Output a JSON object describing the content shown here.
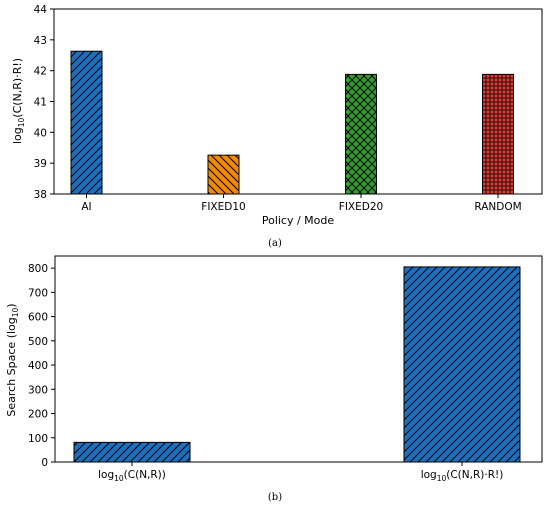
{
  "chart_data": [
    {
      "type": "bar",
      "panel_label": "(a)",
      "categories": [
        "AI",
        "FIXED10",
        "FIXED20",
        "RANDOM"
      ],
      "values": [
        42.63,
        39.26,
        41.88,
        41.88
      ],
      "bar_colors": [
        "#1f6fbf",
        "#f28a00",
        "#2e9e2e",
        "#d93a32"
      ],
      "hatches": [
        "//",
        "\\\\",
        "xx",
        "++"
      ],
      "xlabel": "Policy / Mode",
      "ylabel_parts": [
        "log",
        "10",
        "(C(N,R)·R!)"
      ],
      "ylim": [
        38,
        44
      ],
      "yticks": [
        38,
        39,
        40,
        41,
        42,
        43,
        44
      ],
      "grid": false,
      "legend": "none"
    },
    {
      "type": "bar",
      "panel_label": "(b)",
      "categories": [
        {
          "pre": "log",
          "sub": "10",
          "post": "(C(N,R))"
        },
        {
          "pre": "log",
          "sub": "10",
          "post": "(C(N,R)·R!)"
        }
      ],
      "values": [
        81,
        805
      ],
      "bar_colors": [
        "#1f6fbf",
        "#1f6fbf"
      ],
      "hatches": [
        "//",
        "//"
      ],
      "xlabel": "",
      "ylabel_parts": [
        "Search Space (log",
        "10",
        ")"
      ],
      "ylim": [
        0,
        850
      ],
      "yticks": [
        0,
        100,
        200,
        300,
        400,
        500,
        600,
        700,
        800
      ],
      "grid": false,
      "legend": "none"
    }
  ]
}
